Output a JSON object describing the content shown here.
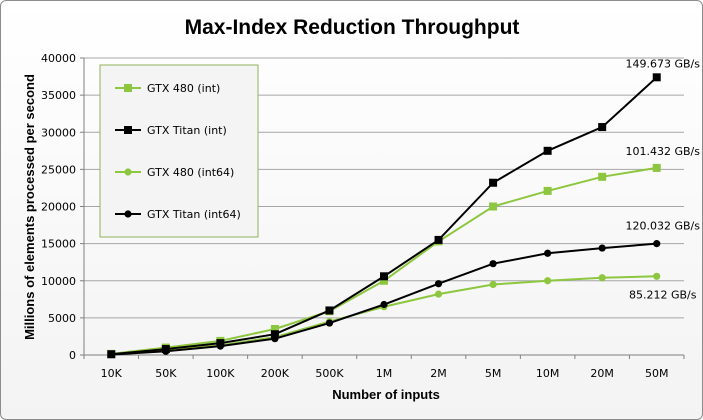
{
  "chart_data": {
    "type": "line",
    "title": "Max-Index Reduction Throughput",
    "xlabel": "Number of inputs",
    "ylabel": "Millions of elements processed per second",
    "categories": [
      "10K",
      "50K",
      "100K",
      "200K",
      "500K",
      "1M",
      "2M",
      "5M",
      "10M",
      "20M",
      "50M"
    ],
    "ylim": [
      0,
      40000
    ],
    "yticks": [
      "0",
      "5000",
      "10000",
      "15000",
      "20000",
      "25000",
      "30000",
      "35000",
      "40000"
    ],
    "grid": true,
    "legend_position": "top-left",
    "series": [
      {
        "name": "GTX 480 (int)",
        "color": "#8dc63f",
        "marker": "square",
        "values": [
          150,
          1000,
          1900,
          3500,
          5900,
          10000,
          15300,
          20000,
          22100,
          24000,
          25200
        ]
      },
      {
        "name": "GTX Titan (int)",
        "color": "#000000",
        "marker": "square",
        "values": [
          100,
          800,
          1600,
          2800,
          6000,
          10600,
          15500,
          23200,
          27500,
          30700,
          37400
        ]
      },
      {
        "name": "GTX 480 (int64)",
        "color": "#8dc63f",
        "marker": "circle",
        "values": [
          100,
          700,
          1300,
          2400,
          4500,
          6500,
          8200,
          9500,
          10000,
          10400,
          10600
        ]
      },
      {
        "name": "GTX Titan (int64)",
        "color": "#000000",
        "marker": "circle",
        "values": [
          50,
          500,
          1200,
          2200,
          4300,
          6800,
          9600,
          12300,
          13700,
          14400,
          15000
        ]
      }
    ],
    "annotations": [
      {
        "text": "149.673 GB/s",
        "series": "GTX Titan (int)"
      },
      {
        "text": "101.432 GB/s",
        "series": "GTX 480 (int)"
      },
      {
        "text": "120.032 GB/s",
        "series": "GTX Titan (int64)"
      },
      {
        "text": "85.212 GB/s",
        "series": "GTX 480 (int64)"
      }
    ]
  }
}
